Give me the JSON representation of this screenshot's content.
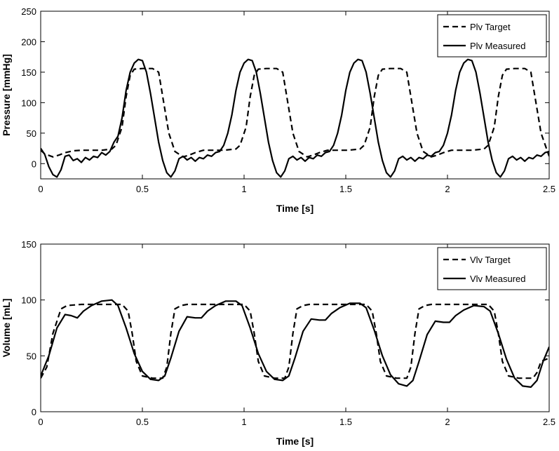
{
  "chart_data": [
    {
      "type": "line",
      "xlabel": "Time [s]",
      "ylabel": "Pressure [mmHg]",
      "xlim": [
        0,
        2.5
      ],
      "ylim": [
        -25,
        250
      ],
      "xticks": [
        0,
        0.5,
        1,
        1.5,
        2,
        2.5
      ],
      "xtick_labels": [
        "0",
        "0.5",
        "1",
        "1.5",
        "2",
        "2.5"
      ],
      "yticks": [
        0,
        50,
        100,
        150,
        200,
        250
      ],
      "ytick_labels": [
        "0",
        "50",
        "100",
        "150",
        "200",
        "250"
      ],
      "grid": false,
      "legend_position": "top-right",
      "series": [
        {
          "name": "Plv Target",
          "style": "dashed",
          "color": "#000000",
          "x": [
            0,
            0.02,
            0.06,
            0.09,
            0.12,
            0.16,
            0.2,
            0.3,
            0.35,
            0.37,
            0.4,
            0.42,
            0.44,
            0.46,
            0.5,
            0.55,
            0.58,
            0.6,
            0.63,
            0.66,
            0.7,
            0.73,
            0.76,
            0.8,
            0.9,
            0.96,
            0.98,
            1.01,
            1.03,
            1.05,
            1.07,
            1.11,
            1.16,
            1.19,
            1.21,
            1.24,
            1.27,
            1.31,
            1.34,
            1.37,
            1.41,
            1.51,
            1.57,
            1.59,
            1.62,
            1.64,
            1.66,
            1.68,
            1.72,
            1.77,
            1.8,
            1.82,
            1.85,
            1.88,
            1.92,
            1.95,
            1.98,
            2.02,
            2.12,
            2.18,
            2.2,
            2.23,
            2.25,
            2.27,
            2.29,
            2.33,
            2.38,
            2.41,
            2.43,
            2.46,
            2.5
          ],
          "y": [
            22,
            16,
            11,
            14,
            18,
            21,
            22,
            22,
            24,
            30,
            60,
            110,
            145,
            155,
            156,
            156,
            150,
            110,
            50,
            20,
            11,
            14,
            18,
            22,
            22,
            24,
            30,
            60,
            110,
            145,
            155,
            156,
            156,
            150,
            110,
            50,
            20,
            11,
            14,
            18,
            22,
            22,
            24,
            30,
            60,
            110,
            145,
            155,
            156,
            156,
            150,
            110,
            50,
            20,
            11,
            14,
            18,
            22,
            22,
            24,
            30,
            60,
            110,
            145,
            155,
            156,
            156,
            150,
            110,
            50,
            12
          ]
        },
        {
          "name": "Plv Measured",
          "style": "solid",
          "color": "#000000",
          "x": [
            0,
            0.02,
            0.04,
            0.06,
            0.08,
            0.1,
            0.12,
            0.14,
            0.16,
            0.18,
            0.2,
            0.22,
            0.24,
            0.26,
            0.28,
            0.3,
            0.32,
            0.34,
            0.36,
            0.38,
            0.4,
            0.42,
            0.44,
            0.46,
            0.48,
            0.5,
            0.52,
            0.54,
            0.56,
            0.58,
            0.6,
            0.62,
            0.64,
            0.66,
            0.68,
            0.7,
            0.72,
            0.74,
            0.76,
            0.78,
            0.8,
            0.82,
            0.84,
            0.86,
            0.88,
            0.9,
            0.92,
            0.94,
            0.96,
            0.98,
            1.0,
            1.02,
            1.04,
            1.06,
            1.08,
            1.1,
            1.12,
            1.14,
            1.16,
            1.18,
            1.2,
            1.22,
            1.24,
            1.26,
            1.28,
            1.3,
            1.32,
            1.34,
            1.36,
            1.38,
            1.4,
            1.42,
            1.44,
            1.46,
            1.48,
            1.5,
            1.52,
            1.54,
            1.56,
            1.58,
            1.6,
            1.62,
            1.64,
            1.66,
            1.68,
            1.7,
            1.72,
            1.74,
            1.76,
            1.78,
            1.8,
            1.82,
            1.84,
            1.86,
            1.88,
            1.9,
            1.92,
            1.94,
            1.96,
            1.98,
            2.0,
            2.02,
            2.04,
            2.06,
            2.08,
            2.1,
            2.12,
            2.14,
            2.16,
            2.18,
            2.2,
            2.22,
            2.24,
            2.26,
            2.28,
            2.3,
            2.32,
            2.34,
            2.36,
            2.38,
            2.4,
            2.42,
            2.44,
            2.46,
            2.48,
            2.5
          ],
          "y": [
            25,
            15,
            -5,
            -18,
            -22,
            -10,
            12,
            14,
            5,
            8,
            2,
            10,
            6,
            12,
            10,
            18,
            14,
            20,
            35,
            45,
            75,
            120,
            150,
            165,
            171,
            169,
            150,
            115,
            75,
            35,
            5,
            -15,
            -22,
            -12,
            8,
            12,
            6,
            10,
            4,
            10,
            8,
            14,
            12,
            18,
            20,
            30,
            50,
            80,
            120,
            150,
            165,
            171,
            169,
            150,
            115,
            75,
            35,
            5,
            -15,
            -22,
            -12,
            8,
            12,
            6,
            10,
            4,
            10,
            8,
            14,
            12,
            18,
            20,
            30,
            50,
            80,
            120,
            150,
            165,
            171,
            169,
            150,
            115,
            75,
            35,
            5,
            -15,
            -22,
            -12,
            8,
            12,
            6,
            10,
            4,
            10,
            8,
            14,
            12,
            18,
            20,
            30,
            50,
            80,
            120,
            150,
            165,
            171,
            169,
            150,
            115,
            75,
            35,
            5,
            -15,
            -22,
            -12,
            8,
            12,
            6,
            10,
            4,
            10,
            8,
            14,
            12,
            18,
            20
          ]
        }
      ]
    },
    {
      "type": "line",
      "xlabel": "Time [s]",
      "ylabel": "Volume [mL]",
      "xlim": [
        0,
        2.5
      ],
      "ylim": [
        0,
        150
      ],
      "xticks": [
        0,
        0.5,
        1,
        1.5,
        2,
        2.5
      ],
      "xtick_labels": [
        "0",
        "0.5",
        "1",
        "1.5",
        "2",
        "2.5"
      ],
      "yticks": [
        0,
        50,
        100,
        150
      ],
      "ytick_labels": [
        "0",
        "50",
        "100",
        "150"
      ],
      "grid": false,
      "legend_position": "top-right",
      "series": [
        {
          "name": "Vlv Target",
          "style": "dashed",
          "color": "#000000",
          "x": [
            0,
            0.03,
            0.06,
            0.1,
            0.13,
            0.2,
            0.3,
            0.4,
            0.43,
            0.45,
            0.47,
            0.5,
            0.55,
            0.6,
            0.62,
            0.64,
            0.66,
            0.69,
            0.72,
            0.8,
            0.9,
            1.0,
            1.03,
            1.05,
            1.07,
            1.1,
            1.15,
            1.2,
            1.22,
            1.24,
            1.26,
            1.29,
            1.32,
            1.4,
            1.5,
            1.6,
            1.63,
            1.65,
            1.67,
            1.7,
            1.75,
            1.8,
            1.82,
            1.84,
            1.86,
            1.89,
            1.92,
            2.0,
            2.1,
            2.2,
            2.23,
            2.25,
            2.27,
            2.3,
            2.35,
            2.4,
            2.42,
            2.44,
            2.46,
            2.5
          ],
          "y": [
            30,
            40,
            70,
            92,
            95,
            96,
            96,
            96,
            90,
            70,
            45,
            32,
            30,
            30,
            40,
            70,
            92,
            95,
            96,
            96,
            96,
            96,
            90,
            70,
            45,
            32,
            30,
            30,
            40,
            70,
            92,
            95,
            96,
            96,
            96,
            96,
            90,
            70,
            45,
            32,
            30,
            30,
            40,
            70,
            92,
            95,
            96,
            96,
            96,
            96,
            90,
            70,
            45,
            32,
            30,
            30,
            30,
            35,
            45,
            48
          ]
        },
        {
          "name": "Vlv Measured",
          "style": "solid",
          "color": "#000000",
          "x": [
            0,
            0.04,
            0.08,
            0.12,
            0.15,
            0.18,
            0.21,
            0.25,
            0.3,
            0.35,
            0.38,
            0.42,
            0.46,
            0.5,
            0.54,
            0.58,
            0.61,
            0.64,
            0.68,
            0.72,
            0.76,
            0.79,
            0.82,
            0.86,
            0.91,
            0.96,
            0.99,
            1.03,
            1.07,
            1.11,
            1.15,
            1.19,
            1.22,
            1.25,
            1.29,
            1.33,
            1.37,
            1.4,
            1.43,
            1.47,
            1.52,
            1.57,
            1.6,
            1.64,
            1.68,
            1.72,
            1.76,
            1.8,
            1.83,
            1.86,
            1.9,
            1.94,
            1.98,
            2.01,
            2.04,
            2.08,
            2.13,
            2.18,
            2.21,
            2.25,
            2.29,
            2.33,
            2.37,
            2.41,
            2.44,
            2.47,
            2.5
          ],
          "y": [
            32,
            50,
            75,
            87,
            86,
            84,
            90,
            95,
            99,
            100,
            95,
            75,
            52,
            36,
            29,
            28,
            32,
            48,
            72,
            85,
            84,
            84,
            90,
            95,
            99,
            99,
            95,
            75,
            52,
            36,
            29,
            28,
            32,
            48,
            72,
            83,
            82,
            82,
            88,
            93,
            97,
            97,
            93,
            73,
            50,
            33,
            25,
            23,
            28,
            45,
            69,
            81,
            80,
            80,
            86,
            91,
            95,
            94,
            90,
            70,
            47,
            30,
            23,
            22,
            28,
            45,
            58
          ]
        }
      ]
    }
  ]
}
